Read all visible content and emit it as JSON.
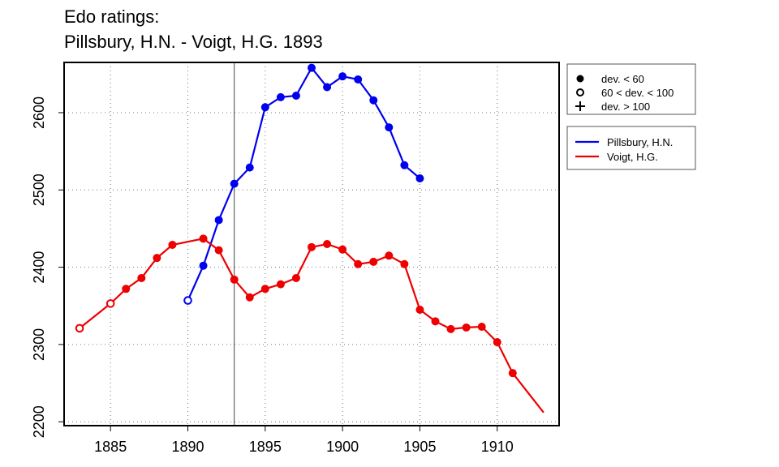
{
  "chart_data": {
    "type": "line",
    "title": [
      "Edo ratings:",
      "Pillsbury, H.N. - Voigt, H.G. 1893"
    ],
    "xlabel": "",
    "ylabel": "",
    "xlim": [
      1882,
      1914
    ],
    "ylim": [
      2195,
      2665
    ],
    "x_ticks": [
      1885,
      1890,
      1895,
      1900,
      1905,
      1910
    ],
    "y_ticks": [
      2200,
      2300,
      2400,
      2500,
      2600
    ],
    "grid": "dotted",
    "marker_line_x": 1893,
    "marker_legend": [
      {
        "symbol": "filled-circle",
        "label": "dev. < 60"
      },
      {
        "symbol": "open-circle",
        "label": "60 < dev. < 100"
      },
      {
        "symbol": "plus",
        "label": "dev. > 100"
      }
    ],
    "legend_position": "right",
    "series": [
      {
        "name": "Pillsbury, H.N.",
        "color": "#0000ee",
        "points": [
          {
            "x": 1890,
            "y": 2357,
            "m": "open"
          },
          {
            "x": 1891,
            "y": 2402,
            "m": "filled"
          },
          {
            "x": 1892,
            "y": 2461,
            "m": "filled"
          },
          {
            "x": 1893,
            "y": 2508,
            "m": "filled"
          },
          {
            "x": 1894,
            "y": 2529,
            "m": "filled"
          },
          {
            "x": 1895,
            "y": 2607,
            "m": "filled"
          },
          {
            "x": 1896,
            "y": 2620,
            "m": "filled"
          },
          {
            "x": 1897,
            "y": 2622,
            "m": "filled"
          },
          {
            "x": 1898,
            "y": 2658,
            "m": "filled"
          },
          {
            "x": 1899,
            "y": 2633,
            "m": "filled"
          },
          {
            "x": 1900,
            "y": 2647,
            "m": "filled"
          },
          {
            "x": 1901,
            "y": 2643,
            "m": "filled"
          },
          {
            "x": 1902,
            "y": 2616,
            "m": "filled"
          },
          {
            "x": 1903,
            "y": 2581,
            "m": "filled"
          },
          {
            "x": 1904,
            "y": 2532,
            "m": "filled"
          },
          {
            "x": 1905,
            "y": 2515,
            "m": "filled"
          }
        ]
      },
      {
        "name": "Voigt, H.G.",
        "color": "#ee0000",
        "points": [
          {
            "x": 1883,
            "y": 2321,
            "m": "open"
          },
          {
            "x": 1885,
            "y": 2353,
            "m": "open"
          },
          {
            "x": 1886,
            "y": 2372,
            "m": "filled"
          },
          {
            "x": 1887,
            "y": 2386,
            "m": "filled"
          },
          {
            "x": 1888,
            "y": 2412,
            "m": "filled"
          },
          {
            "x": 1889,
            "y": 2429,
            "m": "filled"
          },
          {
            "x": 1891,
            "y": 2437,
            "m": "filled"
          },
          {
            "x": 1892,
            "y": 2422,
            "m": "filled"
          },
          {
            "x": 1893,
            "y": 2384,
            "m": "filled"
          },
          {
            "x": 1894,
            "y": 2361,
            "m": "filled"
          },
          {
            "x": 1895,
            "y": 2372,
            "m": "filled"
          },
          {
            "x": 1896,
            "y": 2378,
            "m": "filled"
          },
          {
            "x": 1897,
            "y": 2386,
            "m": "filled"
          },
          {
            "x": 1898,
            "y": 2426,
            "m": "filled"
          },
          {
            "x": 1899,
            "y": 2430,
            "m": "filled"
          },
          {
            "x": 1900,
            "y": 2423,
            "m": "filled"
          },
          {
            "x": 1901,
            "y": 2404,
            "m": "filled"
          },
          {
            "x": 1902,
            "y": 2407,
            "m": "filled"
          },
          {
            "x": 1903,
            "y": 2415,
            "m": "filled"
          },
          {
            "x": 1904,
            "y": 2404,
            "m": "filled"
          },
          {
            "x": 1905,
            "y": 2345,
            "m": "filled"
          },
          {
            "x": 1906,
            "y": 2330,
            "m": "filled"
          },
          {
            "x": 1907,
            "y": 2320,
            "m": "filled"
          },
          {
            "x": 1908,
            "y": 2322,
            "m": "filled"
          },
          {
            "x": 1909,
            "y": 2323,
            "m": "filled"
          },
          {
            "x": 1910,
            "y": 2303,
            "m": "filled"
          },
          {
            "x": 1911,
            "y": 2263,
            "m": "filled"
          },
          {
            "x": 1913,
            "y": 2212,
            "m": "none"
          }
        ]
      }
    ]
  }
}
